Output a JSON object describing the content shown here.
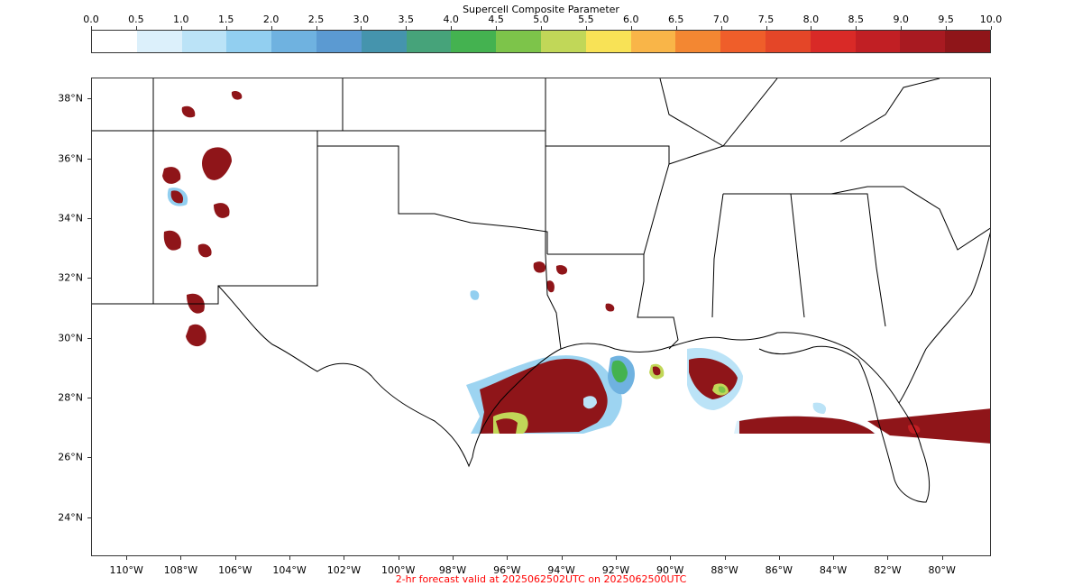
{
  "colorbar": {
    "title": "Supercell Composite Parameter",
    "ticks": [
      "0.0",
      "0.5",
      "1.0",
      "1.5",
      "2.0",
      "2.5",
      "3.0",
      "3.5",
      "4.0",
      "4.5",
      "5.0",
      "5.5",
      "6.0",
      "6.5",
      "7.0",
      "7.5",
      "8.0",
      "8.5",
      "9.0",
      "9.5",
      "10.0"
    ],
    "colors": [
      "#ffffff",
      "#dcf0fb",
      "#bbe3f7",
      "#92cff0",
      "#6fb2e0",
      "#5b9ad2",
      "#4594ad",
      "#46a37a",
      "#44b250",
      "#7dc44a",
      "#c1d758",
      "#f8e256",
      "#f9b548",
      "#f38732",
      "#ef5e2a",
      "#e44628",
      "#d92a27",
      "#c11f24",
      "#a81a21",
      "#8f1519"
    ]
  },
  "map": {
    "lat_labels": [
      "38°N",
      "36°N",
      "34°N",
      "32°N",
      "30°N",
      "28°N",
      "26°N",
      "24°N"
    ],
    "lat_values": [
      38,
      36,
      34,
      32,
      30,
      28,
      26,
      24
    ],
    "lon_labels": [
      "110°W",
      "108°W",
      "106°W",
      "104°W",
      "102°W",
      "100°W",
      "98°W",
      "96°W",
      "94°W",
      "92°W",
      "90°W",
      "88°W",
      "86°W",
      "84°W",
      "82°W",
      "80°W"
    ],
    "lon_values": [
      -110,
      -108,
      -106,
      -104,
      -102,
      -100,
      -98,
      -96,
      -94,
      -92,
      -90,
      -88,
      -86,
      -84,
      -82,
      -80
    ],
    "extent": {
      "lon_min": -111.3,
      "lon_max": -78.2,
      "lat_min": 22.7,
      "lat_max": 38.7
    }
  },
  "footer": {
    "text": "2-hr forecast valid at 2025062502UTC on 2025062500UTC",
    "color": "#ff0000"
  }
}
